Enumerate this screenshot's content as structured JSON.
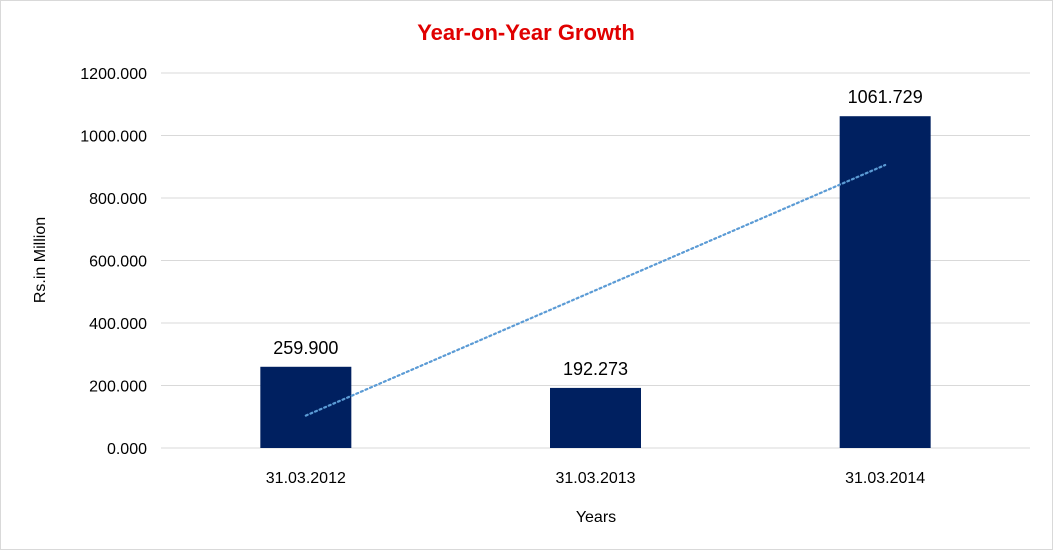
{
  "chart_data": {
    "type": "bar",
    "title": "Year-on-Year Growth",
    "xlabel": "Years",
    "ylabel": "Rs.in Million",
    "categories": [
      "31.03.2012",
      "31.03.2013",
      "31.03.2014"
    ],
    "values": [
      259.9,
      192.273,
      1061.729
    ],
    "data_labels": [
      "259.900",
      "192.273",
      "1061.729"
    ],
    "yticks": [
      0,
      200,
      400,
      600,
      800,
      1000,
      1200
    ],
    "ytick_labels": [
      "0.000",
      "200.000",
      "400.000",
      "600.000",
      "800.000",
      "1000.000",
      "1200.000"
    ],
    "ylim": [
      0,
      1200
    ],
    "grid": true,
    "trendline": {
      "type": "linear",
      "style": "dotted"
    },
    "colors": {
      "bar": "#002060",
      "trendline": "#5b9bd5",
      "title": "#e00000",
      "grid": "#d9d9d9"
    }
  }
}
